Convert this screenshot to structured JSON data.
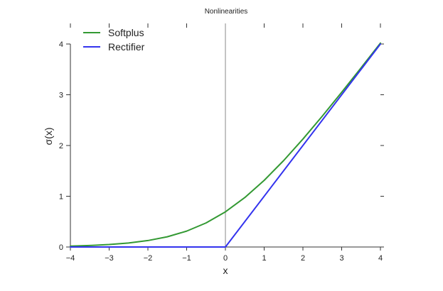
{
  "chart_data": {
    "type": "line",
    "title": "Nonlinearities",
    "xlabel": "x",
    "ylabel": "σ(x)",
    "xlim": [
      -4,
      4
    ],
    "ylim": [
      0,
      4
    ],
    "x_ticks": [
      -4,
      -3,
      -2,
      -1,
      0,
      1,
      2,
      3,
      4
    ],
    "x_tick_labels": [
      "−4",
      "−3",
      "−2",
      "−1",
      "0",
      "1",
      "2",
      "3",
      "4"
    ],
    "y_ticks": [
      0,
      1,
      2,
      3,
      4
    ],
    "y_tick_labels": [
      "0",
      "1",
      "2",
      "3",
      "4"
    ],
    "grid": false,
    "legend_position": "top-left",
    "series": [
      {
        "name": "Softplus",
        "color": "#339933",
        "x": [
          -4,
          -3.5,
          -3,
          -2.5,
          -2,
          -1.5,
          -1,
          -0.5,
          0,
          0.5,
          1,
          1.5,
          2,
          2.5,
          3,
          3.5,
          4
        ],
        "y": [
          0.018,
          0.03,
          0.049,
          0.079,
          0.127,
          0.201,
          0.313,
          0.474,
          0.693,
          0.974,
          1.313,
          1.701,
          2.127,
          2.579,
          3.049,
          3.53,
          4.018
        ]
      },
      {
        "name": "Rectifier",
        "color": "#3333ee",
        "x": [
          -4,
          0,
          4
        ],
        "y": [
          0,
          0,
          4
        ]
      }
    ],
    "vline": {
      "x": 0,
      "color": "#888888"
    }
  }
}
